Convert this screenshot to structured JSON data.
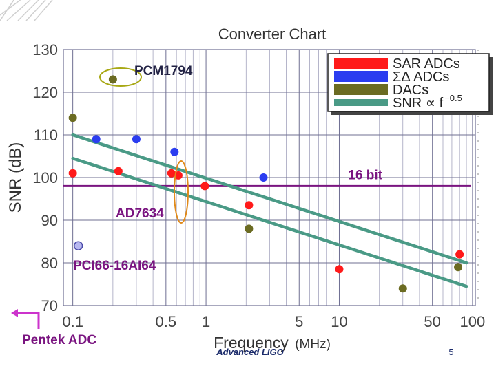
{
  "chart_data": {
    "type": "scatter",
    "title": "Converter Chart",
    "xlabel": "Frequency",
    "xlabel_units": "(MHz)",
    "ylabel": "SNR (dB)",
    "x_scale": "log",
    "xlim": [
      0.085,
      105
    ],
    "ylim": [
      70,
      130
    ],
    "x_ticks": [
      0.1,
      0.5,
      1,
      5,
      10,
      50,
      100
    ],
    "x_tick_labels": [
      "0.1",
      "0.5",
      "1",
      "5",
      "10",
      "50",
      "100"
    ],
    "y_ticks": [
      70,
      80,
      90,
      100,
      110,
      120,
      130
    ],
    "y_tick_labels": [
      "70",
      "80",
      "90",
      "100",
      "110",
      "120",
      "130"
    ],
    "grid": true,
    "legend_position": "top-right",
    "series": [
      {
        "name": "SAR ADCs",
        "color": "#ff1a1a",
        "kind": "points",
        "x": [
          0.1,
          0.22,
          0.55,
          0.62,
          0.98,
          2.1,
          10,
          80
        ],
        "y": [
          101,
          101.5,
          101,
          100.5,
          98,
          93.5,
          78.5,
          82
        ]
      },
      {
        "name": "ΣΔ ADCs",
        "color": "#2b3df0",
        "kind": "points",
        "x": [
          0.15,
          0.3,
          0.58,
          2.7
        ],
        "y": [
          109,
          109,
          106,
          100
        ]
      },
      {
        "name": "DACs",
        "color": "#6b6b22",
        "kind": "points",
        "x": [
          0.1,
          0.2,
          2.1,
          30,
          78
        ],
        "y": [
          114,
          123,
          88,
          74,
          79
        ]
      },
      {
        "name": "SNR ∝ f",
        "legend_exponent": "−0.5",
        "color": "#4a9a86",
        "kind": "trend",
        "lines": [
          {
            "x": [
              0.1,
              90
            ],
            "y": [
              110,
              80
            ]
          },
          {
            "x": [
              0.1,
              90
            ],
            "y": [
              104.5,
              74.5
            ]
          }
        ]
      }
    ],
    "reference_lines": [
      {
        "label": "16 bit",
        "y": 98,
        "color": "#7a1480"
      }
    ],
    "annotations": [
      {
        "label": "PCM1794",
        "x": 0.2,
        "y": 123,
        "color": "#222244"
      },
      {
        "label": "AD7634",
        "x": 0.6,
        "y": 101,
        "color": "#7a1480"
      },
      {
        "label": "PCI66-16AI64",
        "marker_x": 0.11,
        "marker_y": 84,
        "color": "#7a1480"
      },
      {
        "label": "Pentek ADC",
        "color": "#7a1480"
      }
    ]
  },
  "footer": {
    "logo_text": "Advanced LIGO",
    "page_number": "5"
  }
}
